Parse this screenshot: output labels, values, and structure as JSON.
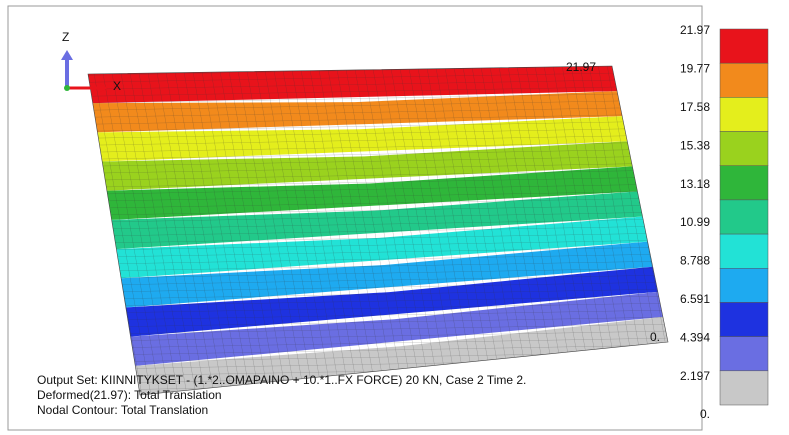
{
  "axes": {
    "z": "Z",
    "x": "X"
  },
  "annotations": {
    "max": "21.97",
    "min": "0."
  },
  "legend": {
    "levels": [
      {
        "label": "21.97",
        "color": "#e8131b"
      },
      {
        "label": "19.77",
        "color": "#f28a1c"
      },
      {
        "label": "17.58",
        "color": "#e4ee1c"
      },
      {
        "label": "15.38",
        "color": "#9ad21e"
      },
      {
        "label": "13.18",
        "color": "#2fb63a"
      },
      {
        "label": "10.99",
        "color": "#22c98a"
      },
      {
        "label": "8.788",
        "color": "#22e2d6"
      },
      {
        "label": "6.591",
        "color": "#1eaaf0"
      },
      {
        "label": "4.394",
        "color": "#1e32e0"
      },
      {
        "label": "2.197",
        "color": "#6a6ee2"
      },
      {
        "label": "0.",
        "color": "#c8c8c8"
      }
    ]
  },
  "footer": [
    "Output Set: KIINNITYKSET -  (1.*2..OMAPAINO + 10.*1..FX FORCE) 20 KN, Case 2 Time 2.",
    "Deformed(21.97): Total Translation",
    "Nodal Contour: Total Translation"
  ]
}
